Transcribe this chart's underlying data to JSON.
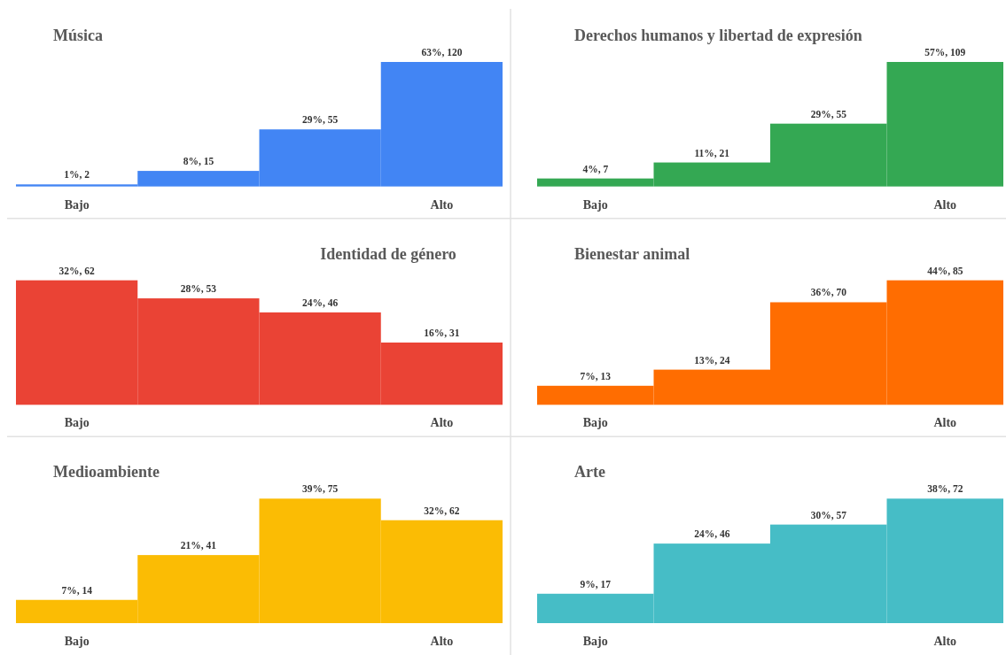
{
  "chart_data": [
    {
      "type": "bar",
      "title": "Música",
      "categories": [
        "Bajo",
        null,
        null,
        "Alto"
      ],
      "values": [
        2,
        15,
        55,
        120
      ],
      "color": "#4285f4",
      "value_labels": [
        "1%, 2",
        "8%, 15",
        "29%, 55",
        "63%, 120"
      ]
    },
    {
      "type": "bar",
      "title": "Derechos humanos y libertad de expresión",
      "categories": [
        "Bajo",
        null,
        null,
        "Alto"
      ],
      "values": [
        7,
        21,
        55,
        109
      ],
      "color": "#34a853",
      "value_labels": [
        "4%, 7",
        "11%, 21",
        "29%, 55",
        "57%, 109"
      ]
    },
    {
      "type": "bar",
      "title": "Identidad de género",
      "categories": [
        "Bajo",
        null,
        null,
        "Alto"
      ],
      "values": [
        62,
        53,
        46,
        31
      ],
      "color": "#ea4335",
      "value_labels": [
        "32%, 62",
        "28%, 53",
        "24%, 46",
        "16%, 31"
      ]
    },
    {
      "type": "bar",
      "title": "Bienestar animal",
      "categories": [
        "Bajo",
        null,
        null,
        "Alto"
      ],
      "values": [
        13,
        24,
        70,
        85
      ],
      "color": "#ff6d01",
      "value_labels": [
        "7%, 13",
        "13%, 24",
        "36%, 70",
        "44%, 85"
      ]
    },
    {
      "type": "bar",
      "title": "Medioambiente",
      "categories": [
        "Bajo",
        null,
        null,
        "Alto"
      ],
      "values": [
        14,
        41,
        75,
        62
      ],
      "color": "#fbbc04",
      "value_labels": [
        "7%, 14",
        "21%, 41",
        "39%, 75",
        "32%, 62"
      ]
    },
    {
      "type": "bar",
      "title": "Arte",
      "categories": [
        "Bajo",
        null,
        null,
        "Alto"
      ],
      "values": [
        17,
        46,
        57,
        72
      ],
      "color": "#46bdc6",
      "value_labels": [
        "9%, 17",
        "24%, 46",
        "30%, 57",
        "38%, 72"
      ]
    }
  ]
}
